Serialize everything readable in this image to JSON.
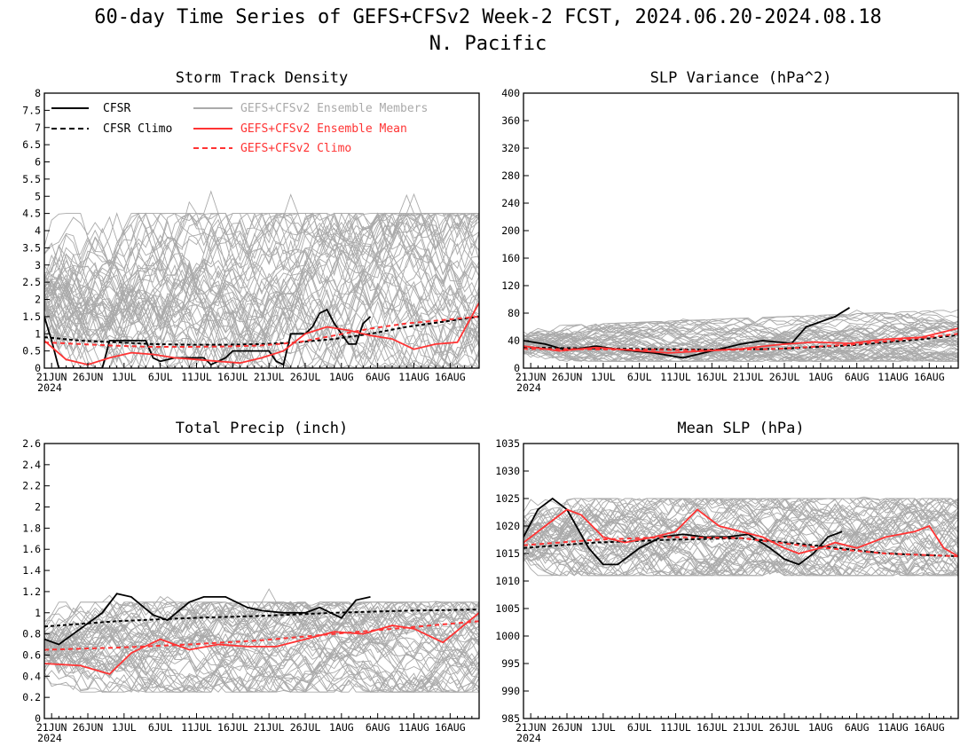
{
  "figure": {
    "title": "60-day Time Series of GEFS+CFSv2 Week-2 FCST, 2024.06.20-2024.08.18",
    "subtitle": "N. Pacific"
  },
  "legend": {
    "items": [
      {
        "label": "CFSR",
        "color": "#000000",
        "dashed": false
      },
      {
        "label": "CFSR Climo",
        "color": "#000000",
        "dashed": true
      },
      {
        "label": "GEFS+CFSv2 Ensemble Members",
        "color": "#aaaaaa",
        "dashed": false
      },
      {
        "label": "GEFS+CFSv2 Ensemble Mean",
        "color": "#ff3333",
        "dashed": false
      },
      {
        "label": "GEFS+CFSv2 Climo",
        "color": "#ff3333",
        "dashed": true
      }
    ]
  },
  "colors": {
    "cfsr": "#000000",
    "members": "#aaaaaa",
    "mean": "#ff3333"
  },
  "chart_data": [
    {
      "type": "line",
      "title": "Storm Track Density",
      "x_tick_labels": [
        "21JUN",
        "26JUN",
        "1JUL",
        "6JUL",
        "11JUL",
        "16JUL",
        "21JUL",
        "26JUL",
        "1AUG",
        "6AUG",
        "11AUG",
        "16AUG"
      ],
      "x_year_label": "2024",
      "x_start_date": "2024-06-20",
      "x_days": 60,
      "ylim": [
        0,
        8
      ],
      "y_ticks": [
        "0",
        "0.5",
        "1",
        "1.5",
        "2",
        "2.5",
        "3",
        "3.5",
        "4",
        "4.5",
        "5",
        "5.5",
        "6",
        "6.5",
        "7",
        "7.5",
        "8"
      ],
      "y_tick_values": [
        0,
        0.5,
        1,
        1.5,
        2,
        2.5,
        3,
        3.5,
        4,
        4.5,
        5,
        5.5,
        6,
        6.5,
        7,
        7.5,
        8
      ],
      "members_envelope": {
        "low": 0,
        "high": 4.5
      },
      "series": [
        {
          "name": "CFSR",
          "x": [
            "2024-06-20",
            "2024-06-21",
            "2024-06-22",
            "2024-06-25",
            "2024-06-28",
            "2024-06-29",
            "2024-07-01",
            "2024-07-04",
            "2024-07-05",
            "2024-07-06",
            "2024-07-08",
            "2024-07-12",
            "2024-07-13",
            "2024-07-15",
            "2024-07-16",
            "2024-07-21",
            "2024-07-22",
            "2024-07-23",
            "2024-07-24",
            "2024-07-26",
            "2024-07-27",
            "2024-07-28",
            "2024-07-29",
            "2024-07-30",
            "2024-07-31",
            "2024-08-01",
            "2024-08-02",
            "2024-08-03",
            "2024-08-04"
          ],
          "values": [
            1.5,
            0.8,
            0,
            0,
            0,
            0.8,
            0.8,
            0.8,
            0.3,
            0.2,
            0.3,
            0.3,
            0.1,
            0.3,
            0.5,
            0.5,
            0.2,
            0.1,
            1.0,
            1.0,
            1.2,
            1.6,
            1.7,
            1.3,
            1.0,
            0.7,
            0.7,
            1.3,
            1.5
          ]
        },
        {
          "name": "CFSR Climo",
          "x": [
            "2024-06-20",
            "2024-06-25",
            "2024-06-30",
            "2024-07-05",
            "2024-07-10",
            "2024-07-15",
            "2024-07-20",
            "2024-07-25",
            "2024-07-30",
            "2024-08-04",
            "2024-08-09",
            "2024-08-14",
            "2024-08-19"
          ],
          "values": [
            0.9,
            0.8,
            0.75,
            0.7,
            0.68,
            0.68,
            0.7,
            0.75,
            0.85,
            1.0,
            1.2,
            1.35,
            1.5
          ]
        },
        {
          "name": "GEFS+CFSv2 Ensemble Mean",
          "x": [
            "2024-06-20",
            "2024-06-23",
            "2024-06-26",
            "2024-06-29",
            "2024-07-02",
            "2024-07-05",
            "2024-07-08",
            "2024-07-11",
            "2024-07-14",
            "2024-07-17",
            "2024-07-20",
            "2024-07-23",
            "2024-07-26",
            "2024-07-29",
            "2024-08-01",
            "2024-08-04",
            "2024-08-07",
            "2024-08-10",
            "2024-08-13",
            "2024-08-16",
            "2024-08-19"
          ],
          "values": [
            0.8,
            0.25,
            0.1,
            0.3,
            0.45,
            0.4,
            0.3,
            0.25,
            0.2,
            0.15,
            0.3,
            0.5,
            1.0,
            1.2,
            1.1,
            0.95,
            0.85,
            0.55,
            0.7,
            0.75,
            1.9
          ]
        },
        {
          "name": "GEFS+CFSv2 Climo",
          "x": [
            "2024-06-20",
            "2024-06-25",
            "2024-06-30",
            "2024-07-05",
            "2024-07-10",
            "2024-07-15",
            "2024-07-20",
            "2024-07-25",
            "2024-07-30",
            "2024-08-04",
            "2024-08-09",
            "2024-08-14",
            "2024-08-19"
          ],
          "values": [
            0.75,
            0.7,
            0.65,
            0.62,
            0.62,
            0.63,
            0.66,
            0.75,
            0.95,
            1.15,
            1.3,
            1.4,
            1.5
          ]
        }
      ]
    },
    {
      "type": "line",
      "title": "SLP Variance (hPa^2)",
      "x_tick_labels": [
        "21JUN",
        "26JUN",
        "1JUL",
        "6JUL",
        "11JUL",
        "16JUL",
        "21JUL",
        "26JUL",
        "1AUG",
        "6AUG",
        "11AUG",
        "16AUG"
      ],
      "x_year_label": "2024",
      "x_start_date": "2024-06-20",
      "x_days": 60,
      "ylim": [
        0,
        400
      ],
      "y_ticks": [
        "0",
        "40",
        "80",
        "120",
        "160",
        "200",
        "240",
        "280",
        "320",
        "360",
        "400"
      ],
      "y_tick_values": [
        0,
        40,
        80,
        120,
        160,
        200,
        240,
        280,
        320,
        360,
        400
      ],
      "members_envelope": {
        "low": 10,
        "high": 60
      },
      "series": [
        {
          "name": "CFSR",
          "x": [
            "2024-06-20",
            "2024-06-23",
            "2024-06-26",
            "2024-06-30",
            "2024-07-04",
            "2024-07-08",
            "2024-07-12",
            "2024-07-16",
            "2024-07-20",
            "2024-07-23",
            "2024-07-27",
            "2024-07-29",
            "2024-08-02",
            "2024-08-04"
          ],
          "values": [
            40,
            35,
            26,
            32,
            26,
            22,
            15,
            25,
            35,
            40,
            36,
            60,
            75,
            88
          ]
        },
        {
          "name": "CFSR Climo",
          "x": [
            "2024-06-20",
            "2024-07-05",
            "2024-07-15",
            "2024-07-25",
            "2024-08-04",
            "2024-08-14",
            "2024-08-19"
          ],
          "values": [
            30,
            28,
            27,
            28,
            33,
            42,
            48
          ]
        },
        {
          "name": "GEFS+CFSv2 Ensemble Mean",
          "x": [
            "2024-06-20",
            "2024-06-25",
            "2024-06-30",
            "2024-07-05",
            "2024-07-10",
            "2024-07-15",
            "2024-07-20",
            "2024-07-25",
            "2024-07-30",
            "2024-08-04",
            "2024-08-09",
            "2024-08-14",
            "2024-08-19"
          ],
          "values": [
            32,
            25,
            30,
            26,
            22,
            25,
            28,
            34,
            38,
            36,
            42,
            45,
            58
          ]
        },
        {
          "name": "GEFS+CFSv2 Climo",
          "x": [
            "2024-06-20",
            "2024-07-05",
            "2024-07-15",
            "2024-07-25",
            "2024-08-04",
            "2024-08-14",
            "2024-08-19"
          ],
          "values": [
            28,
            27,
            26,
            28,
            34,
            44,
            50
          ]
        }
      ]
    },
    {
      "type": "line",
      "title": "Total Precip (inch)",
      "x_tick_labels": [
        "21JUN",
        "26JUN",
        "1JUL",
        "6JUL",
        "11JUL",
        "16JUL",
        "21JUL",
        "26JUL",
        "1AUG",
        "6AUG",
        "11AUG",
        "16AUG"
      ],
      "x_year_label": "2024",
      "x_start_date": "2024-06-20",
      "x_days": 60,
      "ylim": [
        0,
        2.6
      ],
      "y_ticks": [
        "0",
        "0.2",
        "0.4",
        "0.6",
        "0.8",
        "1",
        "1.2",
        "1.4",
        "1.6",
        "1.8",
        "2",
        "2.2",
        "2.4",
        "2.6"
      ],
      "y_tick_values": [
        0,
        0.2,
        0.4,
        0.6,
        0.8,
        1.0,
        1.2,
        1.4,
        1.6,
        1.8,
        2.0,
        2.2,
        2.4,
        2.6
      ],
      "members_envelope": {
        "low": 0.25,
        "high": 1.1
      },
      "series": [
        {
          "name": "CFSR",
          "x": [
            "2024-06-20",
            "2024-06-22",
            "2024-06-25",
            "2024-06-28",
            "2024-06-30",
            "2024-07-02",
            "2024-07-05",
            "2024-07-07",
            "2024-07-10",
            "2024-07-12",
            "2024-07-15",
            "2024-07-18",
            "2024-07-20",
            "2024-07-23",
            "2024-07-26",
            "2024-07-28",
            "2024-07-31",
            "2024-08-02",
            "2024-08-04"
          ],
          "values": [
            0.75,
            0.7,
            0.85,
            1.0,
            1.18,
            1.15,
            0.98,
            0.93,
            1.1,
            1.15,
            1.15,
            1.05,
            1.02,
            1.0,
            1.0,
            1.05,
            0.95,
            1.12,
            1.15
          ]
        },
        {
          "name": "CFSR Climo",
          "x": [
            "2024-06-20",
            "2024-06-30",
            "2024-07-10",
            "2024-07-20",
            "2024-07-30",
            "2024-08-09",
            "2024-08-19"
          ],
          "values": [
            0.87,
            0.92,
            0.95,
            0.97,
            1.0,
            1.02,
            1.03
          ]
        },
        {
          "name": "GEFS+CFSv2 Ensemble Mean",
          "x": [
            "2024-06-20",
            "2024-06-25",
            "2024-06-29",
            "2024-07-02",
            "2024-07-06",
            "2024-07-10",
            "2024-07-14",
            "2024-07-18",
            "2024-07-22",
            "2024-07-26",
            "2024-07-30",
            "2024-08-03",
            "2024-08-07",
            "2024-08-10",
            "2024-08-14",
            "2024-08-19"
          ],
          "values": [
            0.52,
            0.5,
            0.42,
            0.62,
            0.75,
            0.65,
            0.7,
            0.68,
            0.68,
            0.75,
            0.82,
            0.8,
            0.88,
            0.85,
            0.72,
            1.0
          ]
        },
        {
          "name": "GEFS+CFSv2 Climo",
          "x": [
            "2024-06-20",
            "2024-06-30",
            "2024-07-10",
            "2024-07-20",
            "2024-07-30",
            "2024-08-09",
            "2024-08-19"
          ],
          "values": [
            0.65,
            0.67,
            0.7,
            0.74,
            0.8,
            0.86,
            0.92
          ]
        }
      ]
    },
    {
      "type": "line",
      "title": "Mean SLP (hPa)",
      "x_tick_labels": [
        "21JUN",
        "26JUN",
        "1JUL",
        "6JUL",
        "11JUL",
        "16JUL",
        "21JUL",
        "26JUL",
        "1AUG",
        "6AUG",
        "11AUG",
        "16AUG"
      ],
      "x_year_label": "2024",
      "x_start_date": "2024-06-20",
      "x_days": 60,
      "ylim": [
        985,
        1035
      ],
      "y_ticks": [
        "985",
        "990",
        "995",
        "1000",
        "1005",
        "1010",
        "1015",
        "1020",
        "1025",
        "1030",
        "1035"
      ],
      "y_tick_values": [
        985,
        990,
        995,
        1000,
        1005,
        1010,
        1015,
        1020,
        1025,
        1030,
        1035
      ],
      "members_envelope": {
        "low": 1011,
        "high": 1025
      },
      "series": [
        {
          "name": "CFSR",
          "x": [
            "2024-06-20",
            "2024-06-22",
            "2024-06-24",
            "2024-06-26",
            "2024-06-29",
            "2024-07-01",
            "2024-07-03",
            "2024-07-06",
            "2024-07-09",
            "2024-07-12",
            "2024-07-15",
            "2024-07-18",
            "2024-07-21",
            "2024-07-24",
            "2024-07-26",
            "2024-07-28",
            "2024-07-30",
            "2024-08-01",
            "2024-08-03"
          ],
          "values": [
            1018,
            1023,
            1025,
            1023,
            1016,
            1013,
            1013,
            1016,
            1018,
            1018.5,
            1018,
            1018,
            1018.5,
            1016,
            1014,
            1013,
            1015,
            1018,
            1019
          ]
        },
        {
          "name": "CFSR Climo",
          "x": [
            "2024-06-20",
            "2024-06-30",
            "2024-07-10",
            "2024-07-20",
            "2024-07-30",
            "2024-08-09",
            "2024-08-19"
          ],
          "values": [
            1016,
            1017,
            1017.5,
            1017.8,
            1016.5,
            1015,
            1014.5
          ]
        },
        {
          "name": "GEFS+CFSv2 Ensemble Mean",
          "x": [
            "2024-06-20",
            "2024-06-23",
            "2024-06-26",
            "2024-06-28",
            "2024-07-01",
            "2024-07-04",
            "2024-07-08",
            "2024-07-11",
            "2024-07-14",
            "2024-07-17",
            "2024-07-20",
            "2024-07-23",
            "2024-07-26",
            "2024-07-28",
            "2024-07-31",
            "2024-08-02",
            "2024-08-05",
            "2024-08-09",
            "2024-08-13",
            "2024-08-15",
            "2024-08-17",
            "2024-08-19"
          ],
          "values": [
            1017,
            1020,
            1023,
            1022,
            1018,
            1017,
            1018,
            1019,
            1023,
            1020,
            1019,
            1018,
            1016,
            1015,
            1016,
            1017,
            1016,
            1018,
            1019,
            1020,
            1016,
            1014.5
          ]
        },
        {
          "name": "GEFS+CFSv2 Climo",
          "x": [
            "2024-06-20",
            "2024-06-30",
            "2024-07-10",
            "2024-07-20",
            "2024-07-30",
            "2024-08-09",
            "2024-08-19"
          ],
          "values": [
            1016.5,
            1017.5,
            1018,
            1017.8,
            1016.2,
            1015,
            1014.5
          ]
        }
      ]
    }
  ]
}
